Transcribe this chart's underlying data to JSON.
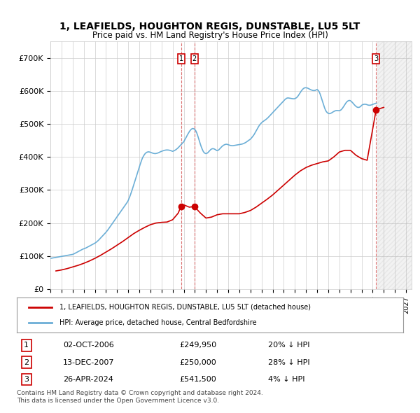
{
  "title": "1, LEAFIELDS, HOUGHTON REGIS, DUNSTABLE, LU5 5LT",
  "subtitle": "Price paid vs. HM Land Registry's House Price Index (HPI)",
  "ylabel_ticks": [
    "£0",
    "£100K",
    "£200K",
    "£300K",
    "£400K",
    "£500K",
    "£600K",
    "£700K"
  ],
  "ytick_values": [
    0,
    100000,
    200000,
    300000,
    400000,
    500000,
    600000,
    700000
  ],
  "ylim": [
    0,
    750000
  ],
  "xlim_start": 1995.0,
  "xlim_end": 2027.5,
  "background_color": "#ffffff",
  "plot_bg_color": "#ffffff",
  "grid_color": "#cccccc",
  "hpi_color": "#6baed6",
  "price_color": "#cc0000",
  "sale_marker_color": "#cc0000",
  "annotation_box_color": "#cc0000",
  "dashed_line_color": "#cc3333",
  "legend_label_price": "1, LEAFIELDS, HOUGHTON REGIS, DUNSTABLE, LU5 5LT (detached house)",
  "legend_label_hpi": "HPI: Average price, detached house, Central Bedfordshire",
  "transactions": [
    {
      "num": 1,
      "date": "02-OCT-2006",
      "price": 249950,
      "pct": "20%",
      "direction": "↓",
      "year": 2006.75
    },
    {
      "num": 2,
      "date": "13-DEC-2007",
      "price": 250000,
      "pct": "28%",
      "direction": "↓",
      "year": 2007.95
    },
    {
      "num": 3,
      "date": "26-APR-2024",
      "price": 541500,
      "pct": "4%",
      "direction": "↓",
      "year": 2024.3
    }
  ],
  "transaction_sale_values": [
    249950,
    250000,
    541500
  ],
  "transaction_years": [
    2006.75,
    2007.95,
    2024.3
  ],
  "footnote1": "Contains HM Land Registry data © Crown copyright and database right 2024.",
  "footnote2": "This data is licensed under the Open Government Licence v3.0.",
  "hpi_x": [
    1995,
    1995.083,
    1995.167,
    1995.25,
    1995.333,
    1995.417,
    1995.5,
    1995.583,
    1995.667,
    1995.75,
    1995.833,
    1995.917,
    1996,
    1996.083,
    1996.167,
    1996.25,
    1996.333,
    1996.417,
    1996.5,
    1996.583,
    1996.667,
    1996.75,
    1996.833,
    1996.917,
    1997,
    1997.083,
    1997.167,
    1997.25,
    1997.333,
    1997.417,
    1997.5,
    1997.583,
    1997.667,
    1997.75,
    1997.833,
    1997.917,
    1998,
    1998.083,
    1998.167,
    1998.25,
    1998.333,
    1998.417,
    1998.5,
    1998.583,
    1998.667,
    1998.75,
    1998.833,
    1998.917,
    1999,
    1999.083,
    1999.167,
    1999.25,
    1999.333,
    1999.417,
    1999.5,
    1999.583,
    1999.667,
    1999.75,
    1999.833,
    1999.917,
    2000,
    2000.083,
    2000.167,
    2000.25,
    2000.333,
    2000.417,
    2000.5,
    2000.583,
    2000.667,
    2000.75,
    2000.833,
    2000.917,
    2001,
    2001.083,
    2001.167,
    2001.25,
    2001.333,
    2001.417,
    2001.5,
    2001.583,
    2001.667,
    2001.75,
    2001.833,
    2001.917,
    2002,
    2002.083,
    2002.167,
    2002.25,
    2002.333,
    2002.417,
    2002.5,
    2002.583,
    2002.667,
    2002.75,
    2002.833,
    2002.917,
    2003,
    2003.083,
    2003.167,
    2003.25,
    2003.333,
    2003.417,
    2003.5,
    2003.583,
    2003.667,
    2003.75,
    2003.833,
    2003.917,
    2004,
    2004.083,
    2004.167,
    2004.25,
    2004.333,
    2004.417,
    2004.5,
    2004.583,
    2004.667,
    2004.75,
    2004.833,
    2004.917,
    2005,
    2005.083,
    2005.167,
    2005.25,
    2005.333,
    2005.417,
    2005.5,
    2005.583,
    2005.667,
    2005.75,
    2005.833,
    2005.917,
    2006,
    2006.083,
    2006.167,
    2006.25,
    2006.333,
    2006.417,
    2006.5,
    2006.583,
    2006.667,
    2006.75,
    2006.833,
    2006.917,
    2007,
    2007.083,
    2007.167,
    2007.25,
    2007.333,
    2007.417,
    2007.5,
    2007.583,
    2007.667,
    2007.75,
    2007.833,
    2007.917,
    2008,
    2008.083,
    2008.167,
    2008.25,
    2008.333,
    2008.417,
    2008.5,
    2008.583,
    2008.667,
    2008.75,
    2008.833,
    2008.917,
    2009,
    2009.083,
    2009.167,
    2009.25,
    2009.333,
    2009.417,
    2009.5,
    2009.583,
    2009.667,
    2009.75,
    2009.833,
    2009.917,
    2010,
    2010.083,
    2010.167,
    2010.25,
    2010.333,
    2010.417,
    2010.5,
    2010.583,
    2010.667,
    2010.75,
    2010.833,
    2010.917,
    2011,
    2011.083,
    2011.167,
    2011.25,
    2011.333,
    2011.417,
    2011.5,
    2011.583,
    2011.667,
    2011.75,
    2011.833,
    2011.917,
    2012,
    2012.083,
    2012.167,
    2012.25,
    2012.333,
    2012.417,
    2012.5,
    2012.583,
    2012.667,
    2012.75,
    2012.833,
    2012.917,
    2013,
    2013.083,
    2013.167,
    2013.25,
    2013.333,
    2013.417,
    2013.5,
    2013.583,
    2013.667,
    2013.75,
    2013.833,
    2013.917,
    2014,
    2014.083,
    2014.167,
    2014.25,
    2014.333,
    2014.417,
    2014.5,
    2014.583,
    2014.667,
    2014.75,
    2014.833,
    2014.917,
    2015,
    2015.083,
    2015.167,
    2015.25,
    2015.333,
    2015.417,
    2015.5,
    2015.583,
    2015.667,
    2015.75,
    2015.833,
    2015.917,
    2016,
    2016.083,
    2016.167,
    2016.25,
    2016.333,
    2016.417,
    2016.5,
    2016.583,
    2016.667,
    2016.75,
    2016.833,
    2016.917,
    2017,
    2017.083,
    2017.167,
    2017.25,
    2017.333,
    2017.417,
    2017.5,
    2017.583,
    2017.667,
    2017.75,
    2017.833,
    2017.917,
    2018,
    2018.083,
    2018.167,
    2018.25,
    2018.333,
    2018.417,
    2018.5,
    2018.583,
    2018.667,
    2018.75,
    2018.833,
    2018.917,
    2019,
    2019.083,
    2019.167,
    2019.25,
    2019.333,
    2019.417,
    2019.5,
    2019.583,
    2019.667,
    2019.75,
    2019.833,
    2019.917,
    2020,
    2020.083,
    2020.167,
    2020.25,
    2020.333,
    2020.417,
    2020.5,
    2020.583,
    2020.667,
    2020.75,
    2020.833,
    2020.917,
    2021,
    2021.083,
    2021.167,
    2021.25,
    2021.333,
    2021.417,
    2021.5,
    2021.583,
    2021.667,
    2021.75,
    2021.833,
    2021.917,
    2022,
    2022.083,
    2022.167,
    2022.25,
    2022.333,
    2022.417,
    2022.5,
    2022.583,
    2022.667,
    2022.75,
    2022.833,
    2022.917,
    2023,
    2023.083,
    2023.167,
    2023.25,
    2023.333,
    2023.417,
    2023.5,
    2023.583,
    2023.667,
    2023.75,
    2023.833,
    2023.917,
    2024,
    2024.083,
    2024.167,
    2024.25,
    2024.333
  ],
  "hpi_y": [
    93000,
    93500,
    94000,
    94500,
    95000,
    95500,
    96000,
    96500,
    97000,
    97500,
    98000,
    98500,
    99000,
    99500,
    100000,
    100500,
    101000,
    101500,
    102000,
    102500,
    103000,
    103500,
    104000,
    104500,
    105000,
    106000,
    107500,
    109000,
    110500,
    112000,
    113500,
    115000,
    116500,
    118000,
    119500,
    121000,
    122000,
    123000,
    124000,
    125500,
    127000,
    128500,
    130000,
    131500,
    133000,
    134500,
    136000,
    137500,
    139000,
    141000,
    143000,
    145500,
    148000,
    151000,
    154000,
    157000,
    160000,
    163000,
    166000,
    169000,
    172000,
    175500,
    179000,
    183000,
    187000,
    191000,
    195000,
    199000,
    203000,
    207000,
    211000,
    215000,
    219000,
    223000,
    227000,
    231000,
    235000,
    239000,
    243000,
    247000,
    251000,
    255000,
    259000,
    263000,
    268000,
    275000,
    282000,
    290000,
    298000,
    307000,
    316000,
    325000,
    334000,
    343000,
    352000,
    361000,
    370000,
    378000,
    386000,
    394000,
    400000,
    405000,
    409000,
    412000,
    414000,
    415000,
    415500,
    415000,
    414000,
    413000,
    412000,
    411000,
    410500,
    410000,
    410500,
    411000,
    412000,
    413000,
    414500,
    416000,
    417000,
    418000,
    419000,
    420000,
    420500,
    421000,
    421000,
    421000,
    420500,
    420000,
    419000,
    418000,
    417000,
    418000,
    419500,
    421000,
    423000,
    425500,
    428000,
    431000,
    434000,
    437000,
    440000,
    443000,
    446000,
    451000,
    456000,
    461500,
    467000,
    472000,
    476500,
    480500,
    483500,
    485500,
    486000,
    485000,
    483000,
    479000,
    473000,
    465000,
    456000,
    447000,
    438000,
    430000,
    423000,
    417000,
    413000,
    411000,
    410000,
    411000,
    413000,
    416000,
    419000,
    422000,
    424000,
    425000,
    425000,
    424000,
    422500,
    420500,
    419000,
    420000,
    422000,
    425000,
    428000,
    431000,
    433500,
    435500,
    437000,
    438000,
    438500,
    438000,
    437000,
    436000,
    435000,
    434500,
    434000,
    434000,
    434500,
    435000,
    435500,
    436000,
    436500,
    437000,
    437500,
    438000,
    438500,
    439000,
    440000,
    441000,
    442500,
    444000,
    446000,
    448000,
    450000,
    452000,
    454000,
    457000,
    460500,
    464000,
    468000,
    473000,
    478000,
    483000,
    488000,
    493000,
    497000,
    500500,
    503500,
    506000,
    508000,
    510000,
    512000,
    514000,
    516500,
    519000,
    522000,
    525000,
    528000,
    531000,
    534000,
    537000,
    540000,
    543000,
    546000,
    549000,
    552000,
    555000,
    558000,
    561000,
    564000,
    567000,
    570000,
    573000,
    575500,
    577500,
    578500,
    578500,
    578000,
    577500,
    577000,
    576500,
    576000,
    576000,
    576500,
    578000,
    580000,
    583000,
    587000,
    591500,
    596000,
    600000,
    603500,
    606500,
    608500,
    609500,
    609500,
    609000,
    608000,
    606500,
    605000,
    603500,
    602500,
    601500,
    601000,
    601000,
    601500,
    603000,
    604000,
    602000,
    598000,
    592000,
    584000,
    575000,
    566000,
    557000,
    549000,
    542000,
    537000,
    534000,
    532000,
    531000,
    531500,
    532500,
    534000,
    536000,
    537500,
    539000,
    540000,
    540500,
    540500,
    540000,
    540000,
    541000,
    543000,
    546000,
    550000,
    554500,
    559000,
    563000,
    566500,
    569000,
    570500,
    571000,
    570000,
    568000,
    565000,
    562000,
    558500,
    555500,
    553000,
    551000,
    550000,
    550000,
    551000,
    553000,
    556000,
    558000,
    559000,
    559500,
    559500,
    559000,
    558000,
    557000,
    556500,
    556500,
    557000,
    558000,
    559000,
    560000,
    561000,
    562000,
    563000,
    564000,
    565000,
    566000,
    567000,
    568000,
    569000,
    570000,
    571000,
    572000,
    573000,
    574000,
    575000
  ],
  "price_x": [
    1995.5,
    1996.0,
    1996.5,
    1997.0,
    1997.5,
    1998.0,
    1998.5,
    1999.0,
    1999.5,
    2000.0,
    2000.5,
    2001.0,
    2001.5,
    2002.0,
    2002.5,
    2003.0,
    2003.5,
    2004.0,
    2004.5,
    2005.0,
    2005.5,
    2006.0,
    2006.5,
    2006.75,
    2007.0,
    2007.5,
    2007.95,
    2008.5,
    2009.0,
    2009.5,
    2010.0,
    2010.5,
    2011.0,
    2011.5,
    2012.0,
    2012.5,
    2013.0,
    2013.5,
    2014.0,
    2014.5,
    2015.0,
    2015.5,
    2016.0,
    2016.5,
    2017.0,
    2017.5,
    2018.0,
    2018.5,
    2019.0,
    2019.5,
    2020.0,
    2020.5,
    2021.0,
    2021.5,
    2022.0,
    2022.5,
    2023.0,
    2023.5,
    2024.3,
    2024.5,
    2025.0
  ],
  "price_y": [
    55000,
    58000,
    62000,
    67000,
    72000,
    78000,
    85000,
    93000,
    102000,
    112000,
    122000,
    133000,
    144000,
    156000,
    168000,
    178000,
    187000,
    195000,
    200000,
    202000,
    203000,
    210000,
    230000,
    249950,
    255000,
    248000,
    250000,
    230000,
    215000,
    218000,
    225000,
    228000,
    228000,
    228000,
    228000,
    232000,
    238000,
    248000,
    260000,
    272000,
    285000,
    300000,
    315000,
    330000,
    345000,
    358000,
    368000,
    375000,
    380000,
    385000,
    388000,
    400000,
    415000,
    420000,
    420000,
    405000,
    395000,
    390000,
    541500,
    545000,
    550000
  ]
}
